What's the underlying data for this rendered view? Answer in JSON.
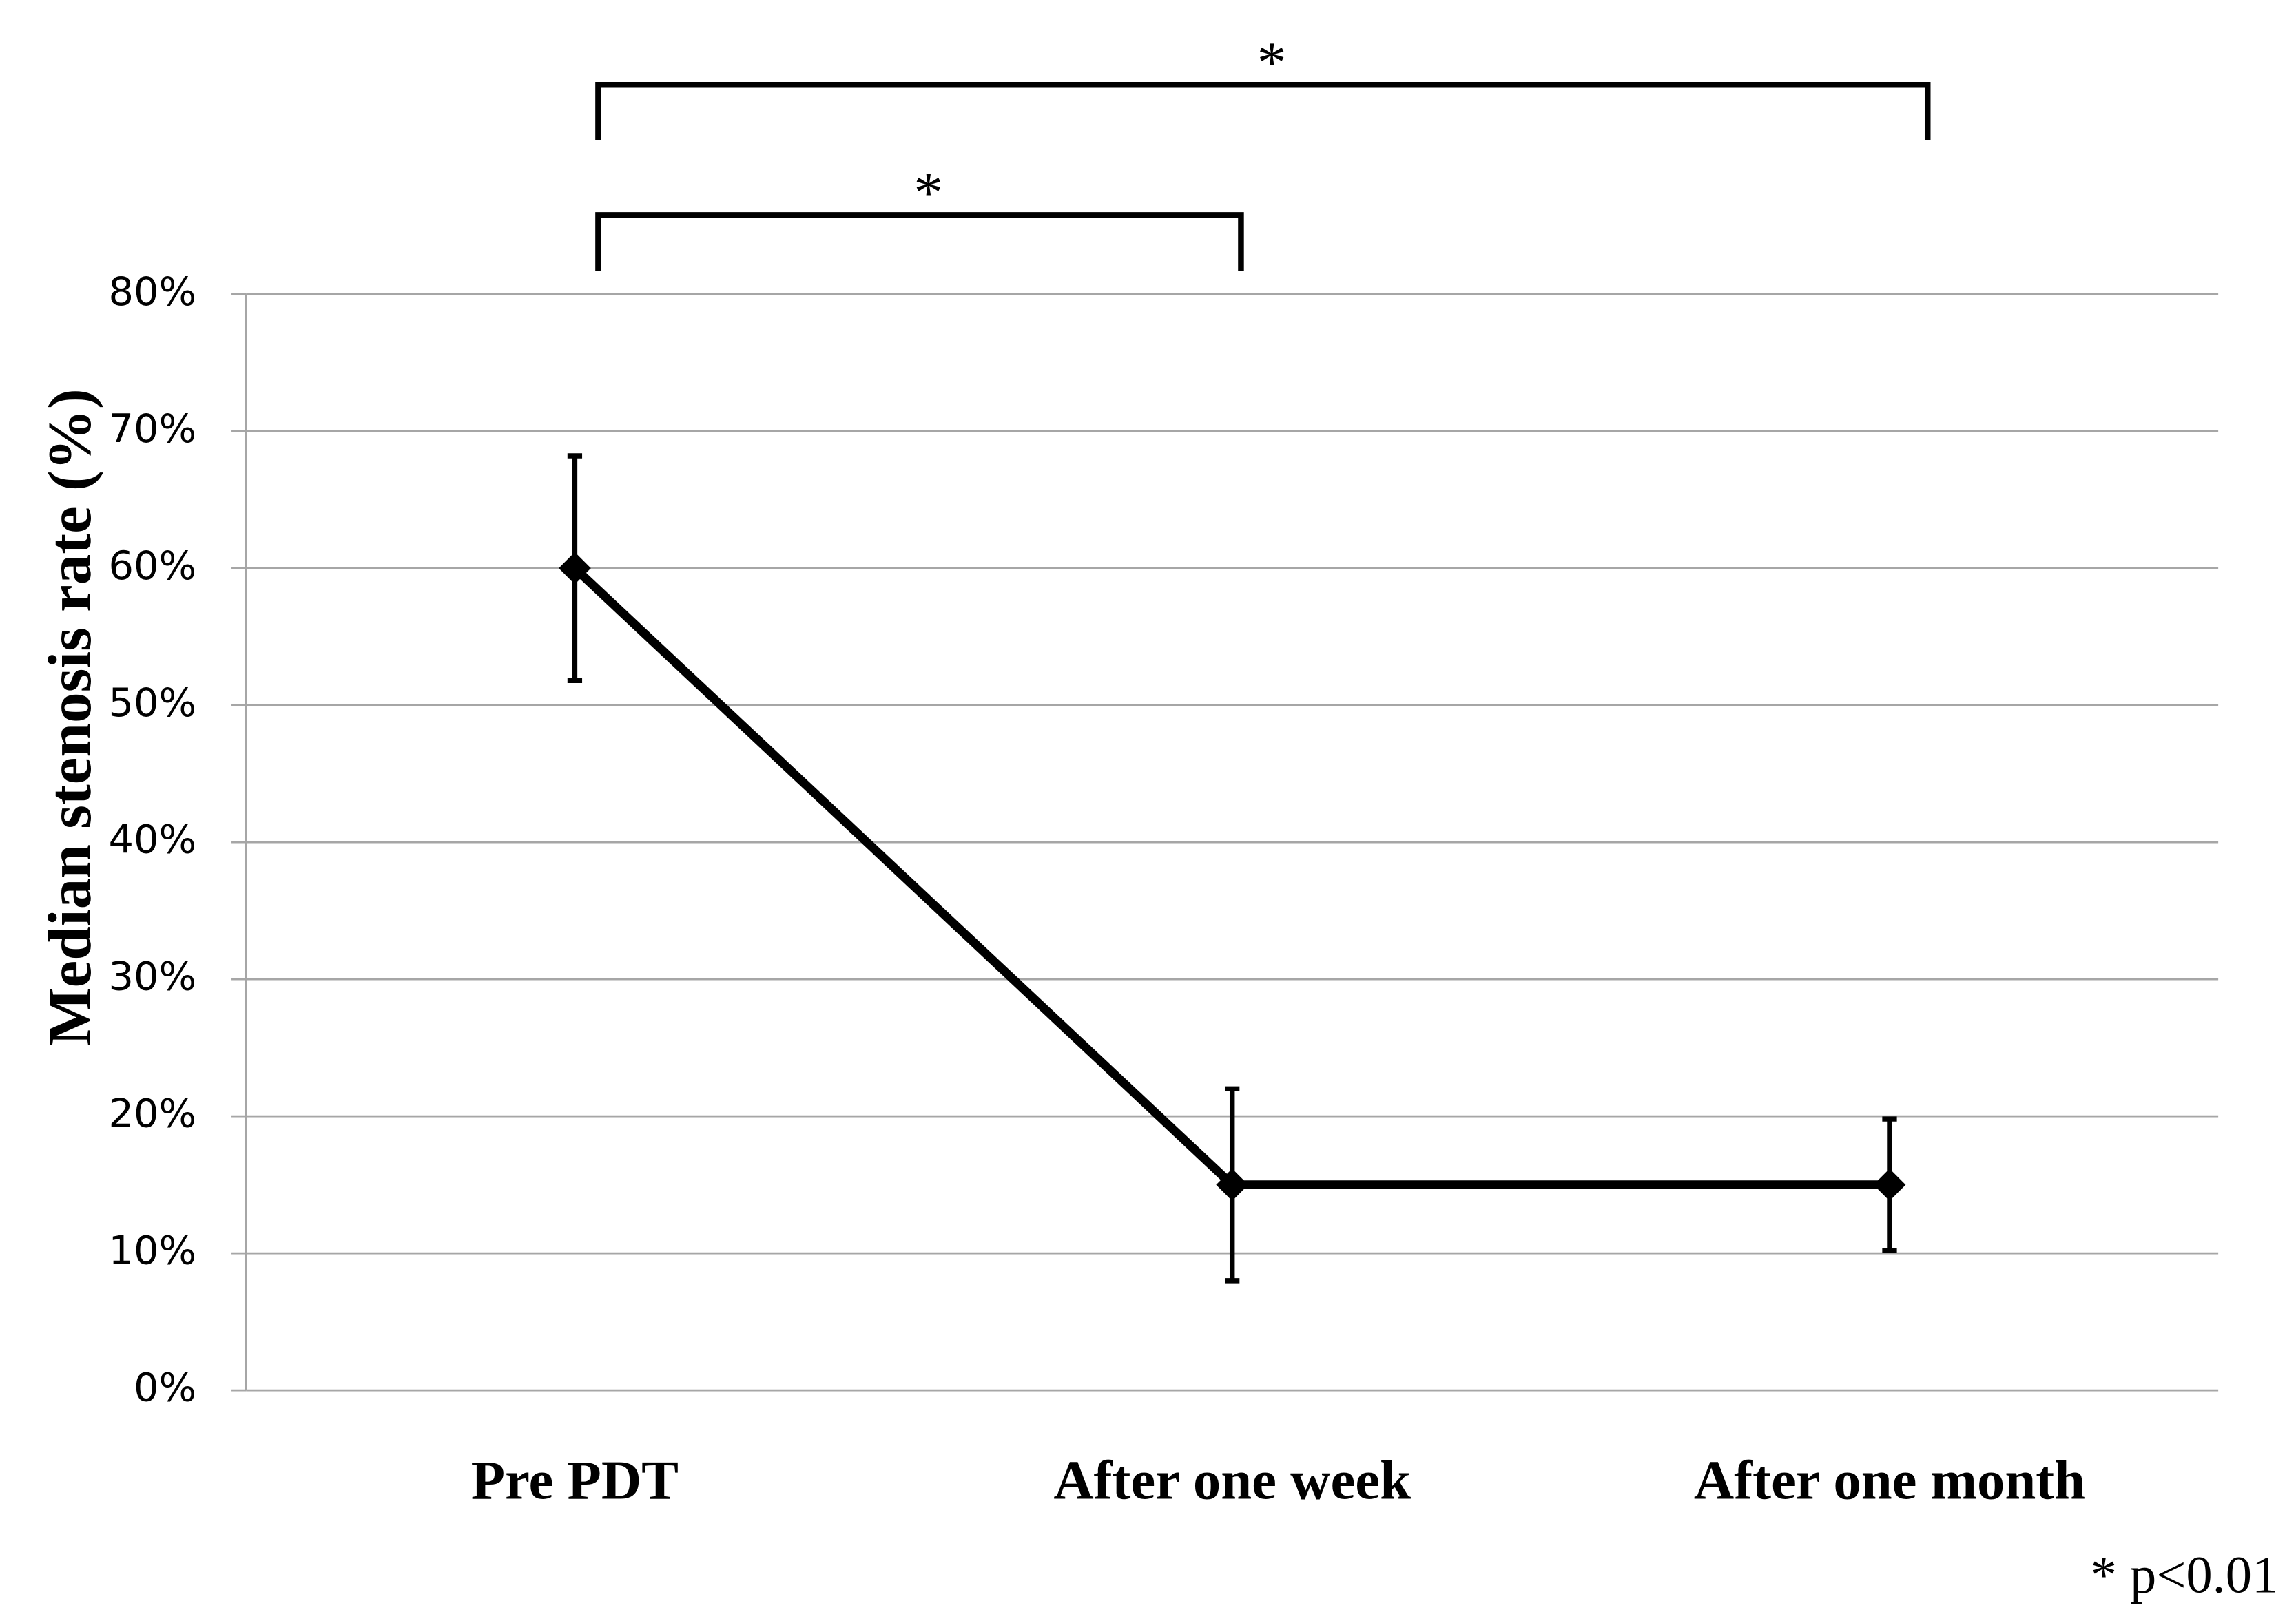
{
  "chart_data": {
    "type": "line",
    "y_label": "Median stenosis rate (%)",
    "categories": [
      "Pre PDT",
      "After one week",
      "After one month"
    ],
    "series": [
      {
        "name": null,
        "color": "#000000",
        "values": [
          60,
          15,
          15
        ],
        "error_high": [
          68.2,
          22,
          19.8
        ],
        "error_low": [
          51.8,
          8,
          10.2
        ]
      }
    ],
    "ylim": [
      0,
      80
    ],
    "yticks": [
      {
        "value": 0,
        "label": "0%"
      },
      {
        "value": 10,
        "label": "10%"
      },
      {
        "value": 20,
        "label": "20%"
      },
      {
        "value": 30,
        "label": "30%"
      },
      {
        "value": 40,
        "label": "40%"
      },
      {
        "value": 50,
        "label": "50%"
      },
      {
        "value": 60,
        "label": "60%"
      },
      {
        "value": 70,
        "label": "70%"
      },
      {
        "value": 80,
        "label": "80%"
      }
    ],
    "grid": true,
    "significance": [
      {
        "from": 0,
        "to": 1,
        "label": "*"
      },
      {
        "from": 0,
        "to": 2,
        "label": "*"
      }
    ],
    "footnote": "* p<0.01"
  }
}
